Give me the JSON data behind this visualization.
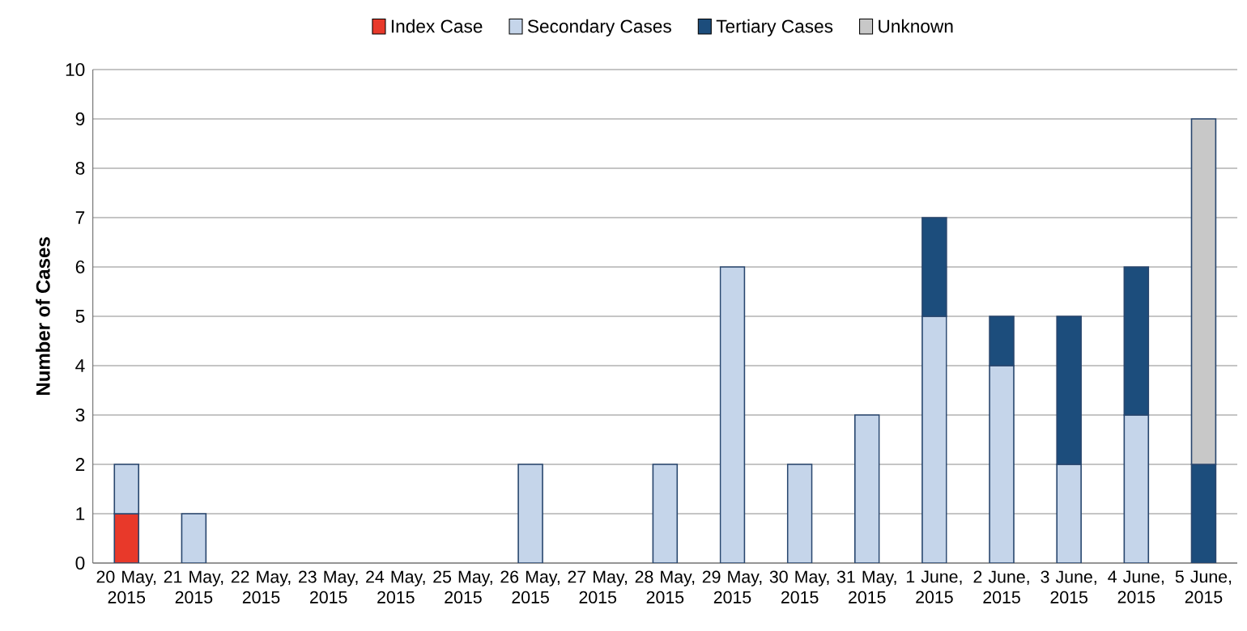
{
  "chart_data": {
    "type": "bar",
    "stacked": true,
    "ylabel": "Number of Cases",
    "categories": [
      "20 May, 2015",
      "21 May, 2015",
      "22 May, 2015",
      "23 May, 2015",
      "24 May, 2015",
      "25 May, 2015",
      "26 May, 2015",
      "27 May, 2015",
      "28 May, 2015",
      "29 May, 2015",
      "30 May, 2015",
      "31 May, 2015",
      "1 June, 2015",
      "2 June, 2015",
      "3 June, 2015",
      "4 June, 2015",
      "5 June, 2015"
    ],
    "series": [
      {
        "name": "Index Case",
        "color": "#e8392a",
        "values": [
          1,
          null,
          null,
          null,
          null,
          null,
          null,
          null,
          null,
          null,
          null,
          null,
          null,
          null,
          null,
          null,
          null
        ]
      },
      {
        "name": "Secondary Cases",
        "color": "#c5d5ea",
        "values": [
          1,
          1,
          null,
          null,
          null,
          null,
          2,
          null,
          2,
          6,
          2,
          3,
          5,
          4,
          2,
          3,
          null
        ]
      },
      {
        "name": "Tertiary Cases",
        "color": "#1c4d7c",
        "values": [
          null,
          null,
          null,
          null,
          null,
          null,
          null,
          null,
          null,
          null,
          null,
          null,
          2,
          1,
          3,
          3,
          2
        ]
      },
      {
        "name": "Unknown",
        "color": "#c8c8c8",
        "values": [
          null,
          null,
          null,
          null,
          null,
          null,
          null,
          null,
          null,
          null,
          null,
          null,
          null,
          null,
          null,
          null,
          7
        ]
      }
    ],
    "ylim": [
      0,
      10
    ],
    "yticks": [
      0,
      1,
      2,
      3,
      4,
      5,
      6,
      7,
      8,
      9,
      10
    ],
    "grid": "y",
    "legend": "top"
  }
}
